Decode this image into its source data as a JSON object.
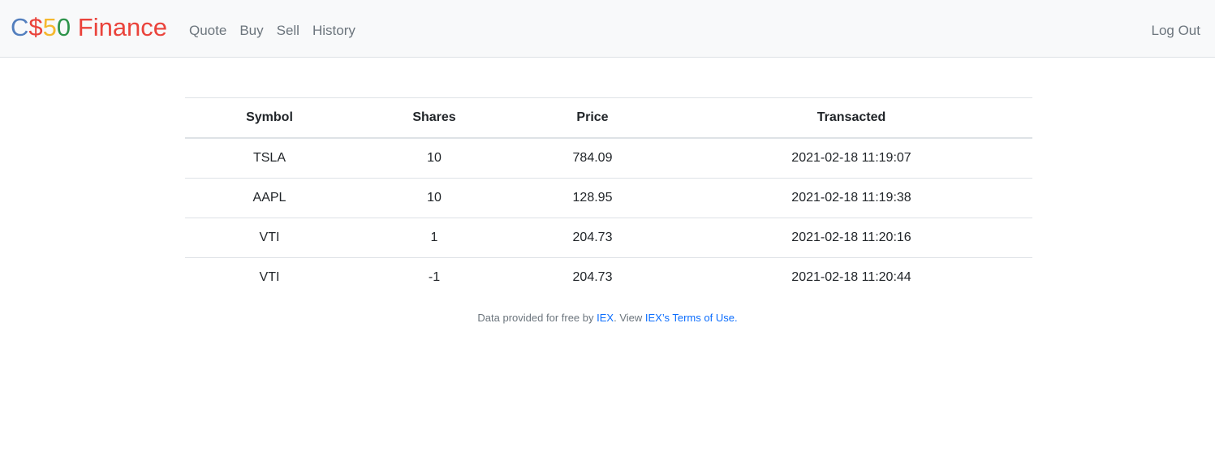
{
  "navbar": {
    "brand": {
      "c": "C",
      "dollar": "$",
      "five": "5",
      "zero": "0",
      "finance": " Finance"
    },
    "links": [
      "Quote",
      "Buy",
      "Sell",
      "History"
    ],
    "logout": "Log Out"
  },
  "table": {
    "headers": [
      "Symbol",
      "Shares",
      "Price",
      "Transacted"
    ],
    "rows": [
      [
        "TSLA",
        "10",
        "784.09",
        "2021-02-18 11:19:07"
      ],
      [
        "AAPL",
        "10",
        "128.95",
        "2021-02-18 11:19:38"
      ],
      [
        "VTI",
        "1",
        "204.73",
        "2021-02-18 11:20:16"
      ],
      [
        "VTI",
        "-1",
        "204.73",
        "2021-02-18 11:20:44"
      ]
    ]
  },
  "footer": {
    "prefix": "Data provided for free by ",
    "iex_link": "IEX",
    "middle": ". View ",
    "terms_link": "IEX’s Terms of Use",
    "suffix": "."
  },
  "colors": {
    "brand_blue": "#537fbe",
    "brand_red": "#ea433b",
    "brand_yellow": "#f5b82e",
    "brand_green": "#2e944b",
    "link": "#0d6efd"
  }
}
